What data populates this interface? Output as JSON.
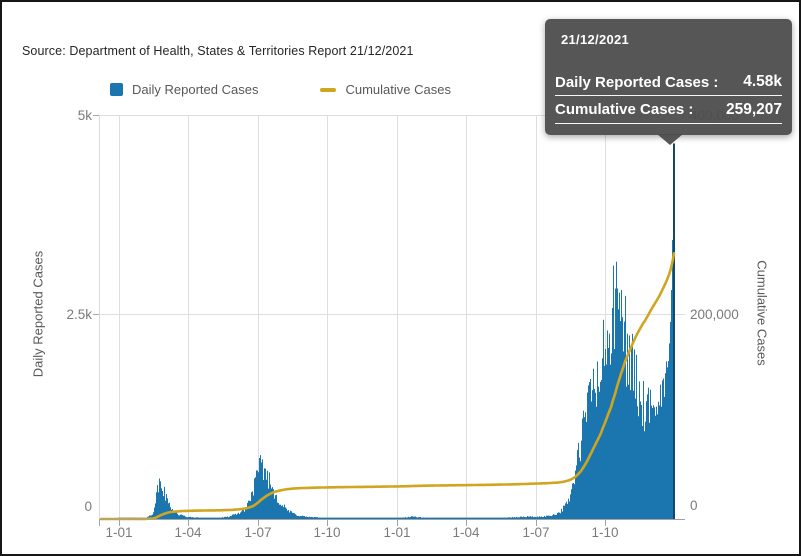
{
  "source_note": "Source: Department of Health, States & Territories Report 21/12/2021",
  "legend": {
    "daily": {
      "label": "Daily Reported Cases",
      "color": "#1b76b0"
    },
    "cumulative": {
      "label": "Cumulative Cases",
      "color": "#d0a51f"
    }
  },
  "tooltip": {
    "date": "21/12/2021",
    "rows": [
      {
        "label": "Daily Reported Cases :",
        "value": "4.58k"
      },
      {
        "label": "Cumulative Cases :",
        "value": "259,207"
      }
    ]
  },
  "axes": {
    "left": {
      "title": "Daily Reported Cases",
      "ticks": [
        "5k",
        "2.5k",
        "0"
      ]
    },
    "right": {
      "title": "Cumulative Cases",
      "ticks": [
        "400,000",
        "200,000",
        "0"
      ]
    },
    "x": {
      "ticks": [
        "1-01",
        "1-04",
        "1-07",
        "1-10",
        "1-01",
        "1-04",
        "1-07",
        "1-10"
      ]
    }
  },
  "chart_data": {
    "type": "combo_bar_line",
    "title": "",
    "x_range": [
      "2020-01-01",
      "2021-12-21"
    ],
    "x_tick_labels": [
      "1-01",
      "1-04",
      "1-07",
      "1-10",
      "1-01",
      "1-04",
      "1-07",
      "1-10"
    ],
    "y_left": {
      "label": "Daily Reported Cases",
      "min": 0,
      "max": 5000,
      "ticks": [
        0,
        2500,
        5000
      ]
    },
    "y_right": {
      "label": "Cumulative Cases",
      "min": 0,
      "max": 400000,
      "ticks": [
        0,
        200000,
        400000
      ]
    },
    "grid": true,
    "legend_position": "top-left",
    "bar_series": {
      "name": "Daily Reported Cases",
      "color": "#1b76b0",
      "selected_color": "#11486b",
      "note": "daily values; anchors are [position 0..1 across time axis, cases/day], linearly interpolated with day-to-day jitter",
      "anchors": [
        [
          0.0,
          0
        ],
        [
          0.054,
          2
        ],
        [
          0.077,
          8
        ],
        [
          0.089,
          60
        ],
        [
          0.094,
          200
        ],
        [
          0.099,
          380
        ],
        [
          0.103,
          440
        ],
        [
          0.108,
          350
        ],
        [
          0.115,
          220
        ],
        [
          0.124,
          120
        ],
        [
          0.134,
          55
        ],
        [
          0.15,
          25
        ],
        [
          0.176,
          12
        ],
        [
          0.202,
          12
        ],
        [
          0.22,
          25
        ],
        [
          0.237,
          60
        ],
        [
          0.25,
          120
        ],
        [
          0.26,
          250
        ],
        [
          0.267,
          420
        ],
        [
          0.274,
          560
        ],
        [
          0.279,
          650
        ],
        [
          0.285,
          600
        ],
        [
          0.291,
          500
        ],
        [
          0.298,
          380
        ],
        [
          0.307,
          260
        ],
        [
          0.316,
          160
        ],
        [
          0.328,
          90
        ],
        [
          0.342,
          45
        ],
        [
          0.36,
          25
        ],
        [
          0.386,
          15
        ],
        [
          0.421,
          12
        ],
        [
          0.456,
          10
        ],
        [
          0.49,
          10
        ],
        [
          0.525,
          15
        ],
        [
          0.545,
          30
        ],
        [
          0.56,
          16
        ],
        [
          0.595,
          10
        ],
        [
          0.63,
          10
        ],
        [
          0.665,
          12
        ],
        [
          0.7,
          15
        ],
        [
          0.726,
          22
        ],
        [
          0.743,
          30
        ],
        [
          0.761,
          25
        ],
        [
          0.778,
          35
        ],
        [
          0.791,
          55
        ],
        [
          0.801,
          90
        ],
        [
          0.81,
          160
        ],
        [
          0.819,
          300
        ],
        [
          0.827,
          550
        ],
        [
          0.836,
          900
        ],
        [
          0.845,
          1250
        ],
        [
          0.853,
          1500
        ],
        [
          0.86,
          1700
        ],
        [
          0.867,
          1600
        ],
        [
          0.874,
          1900
        ],
        [
          0.881,
          2100
        ],
        [
          0.888,
          2300
        ],
        [
          0.895,
          2500
        ],
        [
          0.902,
          2700
        ],
        [
          0.908,
          2450
        ],
        [
          0.913,
          2300
        ],
        [
          0.918,
          2100
        ],
        [
          0.925,
          1900
        ],
        [
          0.932,
          1700
        ],
        [
          0.939,
          1500
        ],
        [
          0.946,
          1350
        ],
        [
          0.953,
          1250
        ],
        [
          0.96,
          1350
        ],
        [
          0.965,
          1200
        ],
        [
          0.97,
          1400
        ],
        [
          0.976,
          1500
        ],
        [
          0.981,
          1600
        ],
        [
          0.986,
          1750
        ],
        [
          0.99,
          1950
        ],
        [
          0.993,
          2400
        ],
        [
          0.9948,
          2800
        ],
        [
          0.9965,
          3400
        ],
        [
          0.9983,
          4050
        ],
        [
          1.0,
          4580
        ]
      ],
      "last_value": 4580
    },
    "line_series": {
      "name": "Cumulative Cases",
      "color": "#d0a51f",
      "derivation": "running total of daily reported cases, scaled to final value",
      "final_value": 259207,
      "plateau_after_2020_waves": 28000
    },
    "highlight": {
      "date": "21/12/2021",
      "daily_reported_cases": 4580,
      "cumulative_cases": 259207
    }
  }
}
